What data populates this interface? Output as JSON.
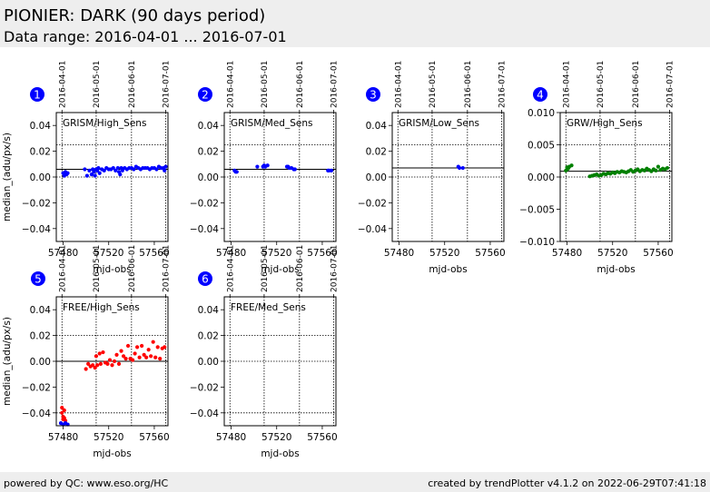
{
  "header": {
    "title": "PIONIER: DARK (90 days period)",
    "subtitle": "Data range: 2016-04-01 ... 2016-07-01"
  },
  "footer": {
    "left": "powered by QC: www.eso.org/HC",
    "right": "created by trendPlotter v4.1.2 on 2022-06-29T07:41:18"
  },
  "colors": {
    "badge": "#0000ff",
    "blue": "#0000ff",
    "green": "#008000",
    "red": "#ff0000"
  },
  "chart_data": [
    {
      "type": "scatter",
      "index": "1",
      "label": "GRISM/High_Sens",
      "ylabel": "median_(adu/px/s)",
      "xlabel": "mjd-obs",
      "xlim": [
        57474,
        57572
      ],
      "ylim": [
        -0.05,
        0.05
      ],
      "yticks": [
        0.04,
        0.02,
        0.0,
        -0.02,
        -0.04
      ],
      "ytick_labels": [
        "0.04",
        "0.02",
        "0.00",
        "−0.02",
        "−0.04"
      ],
      "xticks": [
        57480,
        57520,
        57560
      ],
      "xtick_labels": [
        "57480",
        "57520",
        "57560"
      ],
      "date_ticks": [
        57479,
        57509,
        57540,
        57570
      ],
      "date_labels": [
        "2016-04-01",
        "2016-05-01",
        "2016-06-01",
        "2016-07-01"
      ],
      "ref_lines": [
        0.006
      ],
      "dotted_lines": [
        0.025,
        0.0
      ],
      "color": "#0000ff",
      "x": [
        57480,
        57481,
        57482,
        57483,
        57484,
        57499,
        57501,
        57503,
        57505,
        57506,
        57507,
        57508,
        57509,
        57510,
        57511,
        57512,
        57514,
        57516,
        57518,
        57520,
        57522,
        57524,
        57526,
        57528,
        57529,
        57530,
        57531,
        57532,
        57534,
        57536,
        57538,
        57540,
        57542,
        57544,
        57546,
        57548,
        57550,
        57552,
        57554,
        57556,
        57558,
        57560,
        57562,
        57564,
        57566,
        57568,
        57569,
        57570
      ],
      "y": [
        0.003,
        0.001,
        0.004,
        0.002,
        0.003,
        0.006,
        0.001,
        0.005,
        0.002,
        0.006,
        0.004,
        0.001,
        0.006,
        0.005,
        0.007,
        0.003,
        0.006,
        0.005,
        0.007,
        0.006,
        0.006,
        0.007,
        0.005,
        0.007,
        0.004,
        0.002,
        0.007,
        0.005,
        0.007,
        0.006,
        0.007,
        0.007,
        0.006,
        0.008,
        0.007,
        0.006,
        0.007,
        0.007,
        0.007,
        0.006,
        0.007,
        0.007,
        0.006,
        0.008,
        0.007,
        0.007,
        0.005,
        0.008
      ]
    },
    {
      "type": "scatter",
      "index": "2",
      "label": "GRISM/Med_Sens",
      "ylabel": "",
      "xlabel": "mjd-obs",
      "xlim": [
        57474,
        57572
      ],
      "ylim": [
        -0.05,
        0.05
      ],
      "yticks": [
        0.04,
        0.02,
        0.0,
        -0.02,
        -0.04
      ],
      "ytick_labels": [
        "0.04",
        "0.02",
        "0.00",
        "−0.02",
        "−0.04"
      ],
      "xticks": [
        57480,
        57520,
        57560
      ],
      "xtick_labels": [
        "57480",
        "57520",
        "57560"
      ],
      "date_ticks": [
        57479,
        57509,
        57540,
        57570
      ],
      "date_labels": [
        "2016-04-01",
        "2016-05-01",
        "2016-06-01",
        "2016-07-01"
      ],
      "ref_lines": [
        0.006
      ],
      "dotted_lines": [
        0.025,
        0.0
      ],
      "color": "#0000ff",
      "x": [
        57483,
        57484,
        57485,
        57503,
        57508,
        57509,
        57510,
        57512,
        57529,
        57530,
        57531,
        57533,
        57535,
        57536,
        57565,
        57566,
        57568
      ],
      "y": [
        0.005,
        0.004,
        0.004,
        0.008,
        0.008,
        0.009,
        0.008,
        0.009,
        0.008,
        0.008,
        0.007,
        0.007,
        0.006,
        0.006,
        0.005,
        0.005,
        0.005
      ]
    },
    {
      "type": "scatter",
      "index": "3",
      "label": "GRISM/Low_Sens",
      "ylabel": "",
      "xlabel": "mjd-obs",
      "xlim": [
        57474,
        57572
      ],
      "ylim": [
        -0.05,
        0.05
      ],
      "yticks": [
        0.04,
        0.02,
        0.0,
        -0.02,
        -0.04
      ],
      "ytick_labels": [
        "0.04",
        "0.02",
        "0.00",
        "−0.02",
        "−0.04"
      ],
      "xticks": [
        57480,
        57520,
        57560
      ],
      "xtick_labels": [
        "57480",
        "57520",
        "57560"
      ],
      "date_ticks": [
        57479,
        57509,
        57540,
        57570
      ],
      "date_labels": [
        "2016-04-01",
        "2016-05-01",
        "2016-06-01",
        "2016-07-01"
      ],
      "ref_lines": [
        0.007
      ],
      "dotted_lines": [
        0.025,
        0.0
      ],
      "color": "#0000ff",
      "x": [
        57532,
        57533,
        57536
      ],
      "y": [
        0.008,
        0.007,
        0.007
      ]
    },
    {
      "type": "scatter",
      "index": "4",
      "label": "GRW/High_Sens",
      "ylabel": "",
      "xlabel": "mjd-obs",
      "xlim": [
        57474,
        57572
      ],
      "ylim": [
        -0.01,
        0.01
      ],
      "yticks": [
        0.01,
        0.005,
        0.0,
        -0.005,
        -0.01
      ],
      "ytick_labels": [
        "0.010",
        "0.005",
        "0.000",
        "−0.005",
        "−0.010"
      ],
      "xticks": [
        57480,
        57520,
        57560
      ],
      "xtick_labels": [
        "57480",
        "57520",
        "57560"
      ],
      "date_ticks": [
        57479,
        57509,
        57540,
        57570
      ],
      "date_labels": [
        "2016-04-01",
        "2016-05-01",
        "2016-06-01",
        "2016-07-01"
      ],
      "ref_lines": [
        0.0009
      ],
      "dotted_lines": [
        0.005,
        0.0
      ],
      "color": "#008000",
      "x": [
        57479,
        57480,
        57481,
        57482,
        57484,
        57500,
        57502,
        57504,
        57506,
        57508,
        57510,
        57512,
        57514,
        57516,
        57518,
        57520,
        57522,
        57524,
        57526,
        57528,
        57530,
        57532,
        57534,
        57536,
        57538,
        57540,
        57542,
        57544,
        57546,
        57548,
        57550,
        57552,
        57554,
        57556,
        57558,
        57560,
        57562,
        57564,
        57566,
        57568
      ],
      "y": [
        0.001,
        0.0015,
        0.0013,
        0.0016,
        0.0018,
        0.0001,
        0.0002,
        0.0003,
        0.0004,
        0.0002,
        0.0003,
        0.0005,
        0.0004,
        0.0006,
        0.0005,
        0.0007,
        0.0006,
        0.0008,
        0.0007,
        0.0009,
        0.0008,
        0.0007,
        0.0009,
        0.0011,
        0.0008,
        0.001,
        0.0012,
        0.0009,
        0.0011,
        0.001,
        0.0013,
        0.0011,
        0.0009,
        0.0012,
        0.001,
        0.0016,
        0.0011,
        0.0013,
        0.0012,
        0.0014
      ]
    },
    {
      "type": "scatter",
      "index": "5",
      "label": "FREE/High_Sens",
      "ylabel": "median_(adu/px/s)",
      "xlabel": "mjd-obs",
      "xlim": [
        57474,
        57572
      ],
      "ylim": [
        -0.05,
        0.05
      ],
      "yticks": [
        0.04,
        0.02,
        0.0,
        -0.02,
        -0.04
      ],
      "ytick_labels": [
        "0.04",
        "0.02",
        "0.00",
        "−0.02",
        "−0.04"
      ],
      "xticks": [
        57480,
        57520,
        57560
      ],
      "xtick_labels": [
        "57480",
        "57520",
        "57560"
      ],
      "date_ticks": [
        57479,
        57509,
        57540,
        57570
      ],
      "date_labels": [
        "2016-04-01",
        "2016-05-01",
        "2016-06-01",
        "2016-07-01"
      ],
      "ref_lines": [
        0.0
      ],
      "dotted_lines": [
        0.02,
        -0.04
      ],
      "color": "#ff0000",
      "secondary_color": "#0000ff",
      "x": [
        57479,
        57479,
        57480,
        57480,
        57481,
        57481,
        57482,
        57500,
        57502,
        57504,
        57506,
        57508,
        57509,
        57510,
        57512,
        57513,
        57515,
        57517,
        57519,
        57521,
        57523,
        57525,
        57527,
        57529,
        57531,
        57533,
        57535,
        57537,
        57539,
        57541,
        57543,
        57545,
        57547,
        57549,
        57551,
        57553,
        57555,
        57557,
        57559,
        57561,
        57563,
        57565,
        57567,
        57569
      ],
      "y": [
        -0.036,
        -0.04,
        -0.043,
        -0.045,
        -0.044,
        -0.038,
        -0.046,
        -0.006,
        -0.002,
        -0.004,
        -0.003,
        -0.005,
        0.004,
        -0.003,
        0.006,
        -0.002,
        0.007,
        -0.001,
        -0.002,
        0.001,
        -0.003,
        0.0,
        0.005,
        -0.002,
        0.008,
        0.004,
        0.002,
        0.012,
        0.002,
        0.001,
        0.006,
        0.011,
        0.003,
        0.012,
        0.005,
        0.003,
        0.009,
        0.004,
        0.015,
        0.003,
        0.011,
        0.002,
        0.01,
        0.011
      ],
      "secondary_x": [
        57478,
        57480,
        57482,
        57484
      ],
      "secondary_y": [
        -0.048,
        -0.049,
        -0.048,
        -0.049
      ]
    },
    {
      "type": "scatter",
      "index": "6",
      "label": "FREE/Med_Sens",
      "ylabel": "",
      "xlabel": "mjd-obs",
      "xlim": [
        57474,
        57572
      ],
      "ylim": [
        -0.05,
        0.05
      ],
      "yticks": [
        0.04,
        0.02,
        0.0,
        -0.02,
        -0.04
      ],
      "ytick_labels": [
        "0.04",
        "0.02",
        "0.00",
        "−0.02",
        "−0.04"
      ],
      "xticks": [
        57480,
        57520,
        57560
      ],
      "xtick_labels": [
        "57480",
        "57520",
        "57560"
      ],
      "date_ticks": [
        57479,
        57509,
        57540,
        57570
      ],
      "date_labels": [
        "2016-04-01",
        "2016-05-01",
        "2016-06-01",
        "2016-07-01"
      ],
      "ref_lines": [],
      "dotted_lines": [
        0.02,
        0.0,
        -0.04
      ],
      "color": "#0000ff",
      "x": [],
      "y": []
    }
  ]
}
